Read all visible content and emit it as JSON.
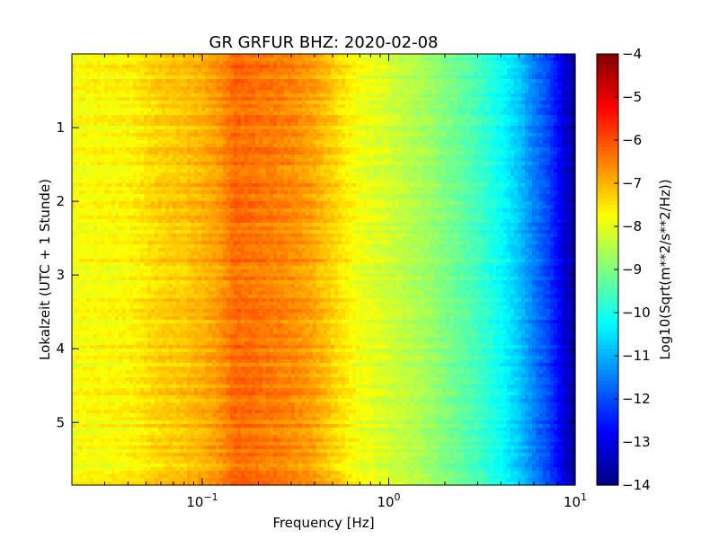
{
  "chart_data": {
    "type": "heatmap",
    "title": "GR GRFUR BHZ: 2020-02-08",
    "xlabel": "Frequency [Hz]",
    "ylabel": "Lokalzeit (UTC + 1 Stunde)",
    "x_scale": "log",
    "xlim": [
      0.02,
      10
    ],
    "ylim": [
      0,
      5.85
    ],
    "y_inverted": true,
    "x_ticks": [
      {
        "base": "10",
        "exp": "−1",
        "value": 0.1
      },
      {
        "base": "10",
        "exp": "0",
        "value": 1
      },
      {
        "base": "10",
        "exp": "1",
        "value": 10
      }
    ],
    "y_ticks": [
      {
        "label": "1",
        "value": 1
      },
      {
        "label": "2",
        "value": 2
      },
      {
        "label": "3",
        "value": 3
      },
      {
        "label": "4",
        "value": 4
      },
      {
        "label": "5",
        "value": 5
      }
    ],
    "colorbar": {
      "label": "Log10(Sqrt(m**2/s**2/Hz))",
      "range": [
        -14,
        -4
      ],
      "colormap": "jet",
      "ticks": [
        "−4",
        "−5",
        "−6",
        "−7",
        "−8",
        "−9",
        "−10",
        "−11",
        "−12",
        "−13",
        "−14"
      ]
    },
    "spectrum_profile": {
      "frequency_hz": [
        0.02,
        0.04,
        0.06,
        0.08,
        0.1,
        0.12,
        0.15,
        0.2,
        0.3,
        0.4,
        0.5,
        0.7,
        1.0,
        1.5,
        2.0,
        3.0,
        4.0,
        5.0,
        6.0,
        7.0,
        8.0,
        9.0,
        10.0
      ],
      "log10_psd": [
        -7.8,
        -7.7,
        -7.3,
        -7.2,
        -7.0,
        -6.8,
        -6.3,
        -6.4,
        -6.6,
        -6.9,
        -7.3,
        -7.9,
        -8.2,
        -8.6,
        -9.0,
        -9.6,
        -10.2,
        -10.8,
        -11.5,
        -12.0,
        -12.6,
        -13.3,
        -13.8
      ]
    }
  }
}
